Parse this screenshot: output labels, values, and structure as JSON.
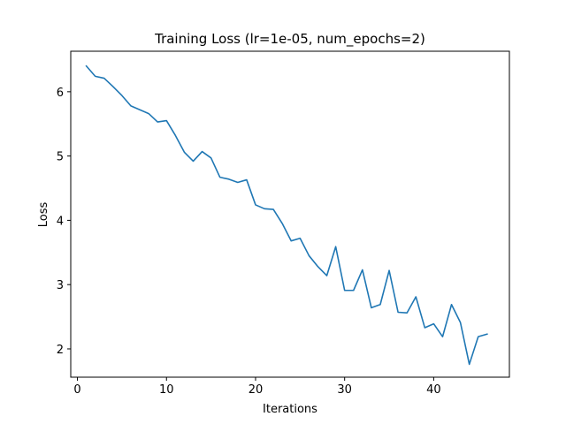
{
  "chart_data": {
    "type": "line",
    "title": "Training Loss (lr=1e-05, num_epochs=2)",
    "xlabel": "Iterations",
    "ylabel": "Loss",
    "xlim": [
      -0.75,
      48.5
    ],
    "ylim": [
      1.56,
      6.63
    ],
    "xticks": [
      0,
      10,
      20,
      30,
      40
    ],
    "yticks": [
      2,
      3,
      4,
      5,
      6
    ],
    "grid": false,
    "legend": "none",
    "series_color": "#1f77b4",
    "series": [
      {
        "x": [
          1,
          2,
          3,
          4,
          5,
          6,
          7,
          8,
          9,
          10,
          11,
          12,
          13,
          14,
          15,
          16,
          17,
          18,
          19,
          20,
          21,
          22,
          23,
          24,
          25,
          26,
          27,
          28,
          29,
          30,
          31,
          32,
          33,
          34,
          35,
          36,
          37,
          38,
          39,
          40,
          41,
          42,
          43,
          44,
          45,
          46
        ],
        "values": [
          6.4,
          6.24,
          6.21,
          6.08,
          5.94,
          5.78,
          5.72,
          5.66,
          5.53,
          5.55,
          5.32,
          5.06,
          4.92,
          5.07,
          4.97,
          4.67,
          4.64,
          4.59,
          4.63,
          4.24,
          4.18,
          4.17,
          3.95,
          3.68,
          3.72,
          3.45,
          3.28,
          3.14,
          3.59,
          2.91,
          2.91,
          3.23,
          2.64,
          2.69,
          3.22,
          2.57,
          2.56,
          2.81,
          2.33,
          2.39,
          2.19,
          2.69,
          2.41,
          1.76,
          2.19,
          2.23
        ]
      }
    ]
  }
}
